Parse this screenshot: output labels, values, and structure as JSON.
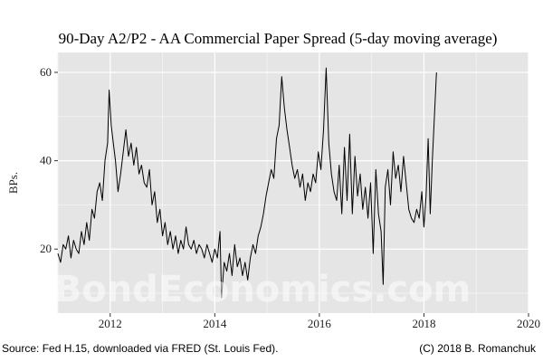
{
  "chart_data": {
    "type": "line",
    "title": "90-Day A2/P2 - AA Commercial Paper Spread (5-day moving average)",
    "xlabel": "",
    "ylabel": "BPs.",
    "xlim": [
      2011.0,
      2020.0
    ],
    "ylim": [
      5.5,
      64.5
    ],
    "x_ticks": [
      2012,
      2014,
      2016,
      2018,
      2020
    ],
    "y_ticks": [
      20,
      40,
      60
    ],
    "x_tick_labels": [
      "2012",
      "2014",
      "2016",
      "2018",
      "2020"
    ],
    "y_tick_labels": [
      "20",
      "40",
      "60"
    ],
    "grid": true,
    "legend": "none",
    "colors": {
      "panel": "#e5e5e5",
      "grid_major": "#ffffff",
      "grid_minor": "#f2f2f2",
      "line": "#000000"
    },
    "series": [
      {
        "values": [
          [
            2011.0,
            19
          ],
          [
            2011.05,
            17
          ],
          [
            2011.1,
            21
          ],
          [
            2011.15,
            20
          ],
          [
            2011.2,
            23
          ],
          [
            2011.25,
            18
          ],
          [
            2011.3,
            22
          ],
          [
            2011.35,
            20
          ],
          [
            2011.4,
            19
          ],
          [
            2011.45,
            24
          ],
          [
            2011.5,
            21
          ],
          [
            2011.55,
            26
          ],
          [
            2011.6,
            22
          ],
          [
            2011.65,
            29
          ],
          [
            2011.7,
            27
          ],
          [
            2011.75,
            33
          ],
          [
            2011.8,
            35
          ],
          [
            2011.85,
            31
          ],
          [
            2011.9,
            40
          ],
          [
            2011.95,
            44
          ],
          [
            2011.98,
            56
          ],
          [
            2012.02,
            48
          ],
          [
            2012.06,
            44
          ],
          [
            2012.1,
            40
          ],
          [
            2012.15,
            33
          ],
          [
            2012.2,
            37
          ],
          [
            2012.25,
            42
          ],
          [
            2012.3,
            47
          ],
          [
            2012.35,
            41
          ],
          [
            2012.4,
            44
          ],
          [
            2012.45,
            39
          ],
          [
            2012.5,
            43
          ],
          [
            2012.55,
            37
          ],
          [
            2012.6,
            39
          ],
          [
            2012.65,
            35
          ],
          [
            2012.7,
            34
          ],
          [
            2012.75,
            38
          ],
          [
            2012.8,
            30
          ],
          [
            2012.85,
            33
          ],
          [
            2012.9,
            26
          ],
          [
            2012.95,
            29
          ],
          [
            2013.0,
            23
          ],
          [
            2013.05,
            26
          ],
          [
            2013.1,
            21
          ],
          [
            2013.15,
            24
          ],
          [
            2013.2,
            20
          ],
          [
            2013.25,
            23
          ],
          [
            2013.3,
            19
          ],
          [
            2013.35,
            22
          ],
          [
            2013.4,
            20
          ],
          [
            2013.45,
            25
          ],
          [
            2013.5,
            21
          ],
          [
            2013.55,
            20
          ],
          [
            2013.6,
            22
          ],
          [
            2013.65,
            19
          ],
          [
            2013.7,
            21
          ],
          [
            2013.75,
            20
          ],
          [
            2013.8,
            18
          ],
          [
            2013.85,
            21
          ],
          [
            2013.9,
            19
          ],
          [
            2013.95,
            17
          ],
          [
            2014.0,
            20
          ],
          [
            2014.05,
            18
          ],
          [
            2014.1,
            24
          ],
          [
            2014.13,
            9
          ],
          [
            2014.18,
            17
          ],
          [
            2014.23,
            15
          ],
          [
            2014.28,
            19
          ],
          [
            2014.33,
            14
          ],
          [
            2014.38,
            21
          ],
          [
            2014.43,
            16
          ],
          [
            2014.48,
            18
          ],
          [
            2014.53,
            14
          ],
          [
            2014.58,
            17
          ],
          [
            2014.63,
            13
          ],
          [
            2014.68,
            18
          ],
          [
            2014.73,
            21
          ],
          [
            2014.78,
            19
          ],
          [
            2014.83,
            23
          ],
          [
            2014.88,
            25
          ],
          [
            2014.93,
            28
          ],
          [
            2014.98,
            32
          ],
          [
            2015.03,
            35
          ],
          [
            2015.08,
            38
          ],
          [
            2015.13,
            36
          ],
          [
            2015.18,
            45
          ],
          [
            2015.23,
            48
          ],
          [
            2015.28,
            59
          ],
          [
            2015.33,
            52
          ],
          [
            2015.38,
            47
          ],
          [
            2015.43,
            43
          ],
          [
            2015.48,
            39
          ],
          [
            2015.53,
            36
          ],
          [
            2015.58,
            38
          ],
          [
            2015.63,
            34
          ],
          [
            2015.68,
            37
          ],
          [
            2015.73,
            31
          ],
          [
            2015.78,
            35
          ],
          [
            2015.83,
            33
          ],
          [
            2015.88,
            37
          ],
          [
            2015.93,
            35
          ],
          [
            2015.98,
            42
          ],
          [
            2016.03,
            38
          ],
          [
            2016.08,
            47
          ],
          [
            2016.13,
            61
          ],
          [
            2016.18,
            44
          ],
          [
            2016.23,
            37
          ],
          [
            2016.28,
            33
          ],
          [
            2016.33,
            31
          ],
          [
            2016.38,
            39
          ],
          [
            2016.43,
            28
          ],
          [
            2016.48,
            43
          ],
          [
            2016.53,
            31
          ],
          [
            2016.58,
            46
          ],
          [
            2016.63,
            28
          ],
          [
            2016.68,
            41
          ],
          [
            2016.73,
            32
          ],
          [
            2016.78,
            37
          ],
          [
            2016.83,
            29
          ],
          [
            2016.88,
            34
          ],
          [
            2016.93,
            27
          ],
          [
            2016.98,
            35
          ],
          [
            2017.03,
            19
          ],
          [
            2017.08,
            38
          ],
          [
            2017.13,
            28
          ],
          [
            2017.18,
            24
          ],
          [
            2017.22,
            12
          ],
          [
            2017.26,
            34
          ],
          [
            2017.31,
            38
          ],
          [
            2017.36,
            30
          ],
          [
            2017.41,
            42
          ],
          [
            2017.46,
            36
          ],
          [
            2017.51,
            39
          ],
          [
            2017.56,
            33
          ],
          [
            2017.61,
            41
          ],
          [
            2017.66,
            35
          ],
          [
            2017.71,
            29
          ],
          [
            2017.76,
            27
          ],
          [
            2017.81,
            26
          ],
          [
            2017.86,
            29
          ],
          [
            2017.91,
            27
          ],
          [
            2017.96,
            33
          ],
          [
            2018.0,
            25
          ],
          [
            2018.04,
            32
          ],
          [
            2018.08,
            45
          ],
          [
            2018.12,
            28
          ],
          [
            2018.16,
            40
          ],
          [
            2018.2,
            50
          ],
          [
            2018.24,
            60
          ]
        ]
      }
    ],
    "source_note": "Source: Fed H.15, downloaded via FRED (St. Louis Fed).",
    "credit_note": "(C) 2018 B. Romanchuk",
    "watermark": "BondEconomics.com"
  }
}
